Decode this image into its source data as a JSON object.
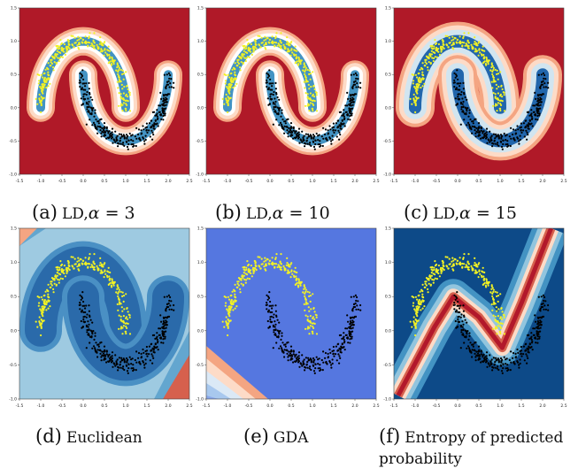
{
  "figure": {
    "captions": [
      {
        "letter": "(a)",
        "name": "LD,",
        "alpha": "α",
        "eq": " = 3"
      },
      {
        "letter": "(b)",
        "name": "LD,",
        "alpha": "α",
        "eq": " = 10"
      },
      {
        "letter": "(c)",
        "name": "LD,",
        "alpha": "α",
        "eq": " = 15"
      },
      {
        "letter": "(d)",
        "name": "Euclidean"
      },
      {
        "letter": "(e)",
        "name": "GDA"
      },
      {
        "letter": "(f)",
        "name": "Entropy of predicted",
        "name2": "probability"
      }
    ]
  },
  "chart_data": [
    {
      "type": "heatmap",
      "panel": "a",
      "xlim": [
        -1.5,
        2.5
      ],
      "ylim": [
        -1.0,
        1.5
      ],
      "xticks": [
        "-1.5",
        "-1.0",
        "-0.5",
        "0.0",
        "0.5",
        "1.0",
        "1.5",
        "2.0",
        "2.5"
      ],
      "yticks": [
        "1.5",
        "1.0",
        "0.5",
        "0.0",
        "-0.5",
        "-1.0"
      ],
      "series": [
        {
          "name": "",
          "color": "#f2f224"
        },
        {
          "name": "",
          "color": "#000000"
        }
      ],
      "background": "#b01928",
      "band": "narrow"
    },
    {
      "type": "heatmap",
      "panel": "b",
      "xlim": [
        -1.5,
        2.5
      ],
      "ylim": [
        -1.0,
        1.5
      ],
      "xticks": [
        "-1.5",
        "-1.0",
        "-0.5",
        "0.0",
        "0.5",
        "1.0",
        "1.5",
        "2.0",
        "2.5"
      ],
      "yticks": [
        "1.5",
        "1.0",
        "0.5",
        "0.0",
        "-0.5",
        "-1.0"
      ],
      "background": "#b01928",
      "band": "narrow"
    },
    {
      "type": "heatmap",
      "panel": "c",
      "xlim": [
        -1.5,
        2.5
      ],
      "ylim": [
        -1.0,
        1.5
      ],
      "xticks": [
        "-1.5",
        "-1.0",
        "-0.5",
        "0.0",
        "0.5",
        "1.0",
        "1.5",
        "2.0",
        "2.5"
      ],
      "yticks": [
        "1.5",
        "1.0",
        "0.5",
        "0.0",
        "-0.5",
        "-1.0"
      ],
      "background": "#b01928",
      "band": "wide"
    },
    {
      "type": "heatmap",
      "panel": "d",
      "xlim": [
        -1.5,
        2.5
      ],
      "ylim": [
        -1.0,
        1.5
      ],
      "xticks": [
        "-1.5",
        "-1.0",
        "-0.5",
        "0.0",
        "0.5",
        "1.0",
        "1.5",
        "2.0",
        "2.5"
      ],
      "yticks": [
        "1.5",
        "1.0",
        "0.5",
        "0.0",
        "-0.5",
        "-1.0"
      ],
      "background": "#63a6cf",
      "band": "euclidean"
    },
    {
      "type": "heatmap",
      "panel": "e",
      "xlim": [
        -1.5,
        2.5
      ],
      "ylim": [
        -1.0,
        1.5
      ],
      "xticks": [
        "-1.5",
        "-1.0",
        "-0.5",
        "0.0",
        "0.5",
        "1.0",
        "1.5",
        "2.0",
        "2.5"
      ],
      "yticks": [
        "1.5",
        "1.0",
        "0.5",
        "0.0",
        "-0.5",
        "-1.0"
      ],
      "background": "#5577e0",
      "band": "gda"
    },
    {
      "type": "heatmap",
      "panel": "f",
      "xlim": [
        -1.5,
        2.5
      ],
      "ylim": [
        -1.0,
        1.5
      ],
      "xticks": [
        "-1.5",
        "-1.0",
        "-0.5",
        "0.0",
        "0.5",
        "1.0",
        "1.5",
        "2.0",
        "2.5"
      ],
      "yticks": [
        "1.5",
        "1.0",
        "0.5",
        "0.0",
        "-0.5",
        "-1.0"
      ],
      "background": "#0d4a88",
      "band": "boundary"
    }
  ]
}
